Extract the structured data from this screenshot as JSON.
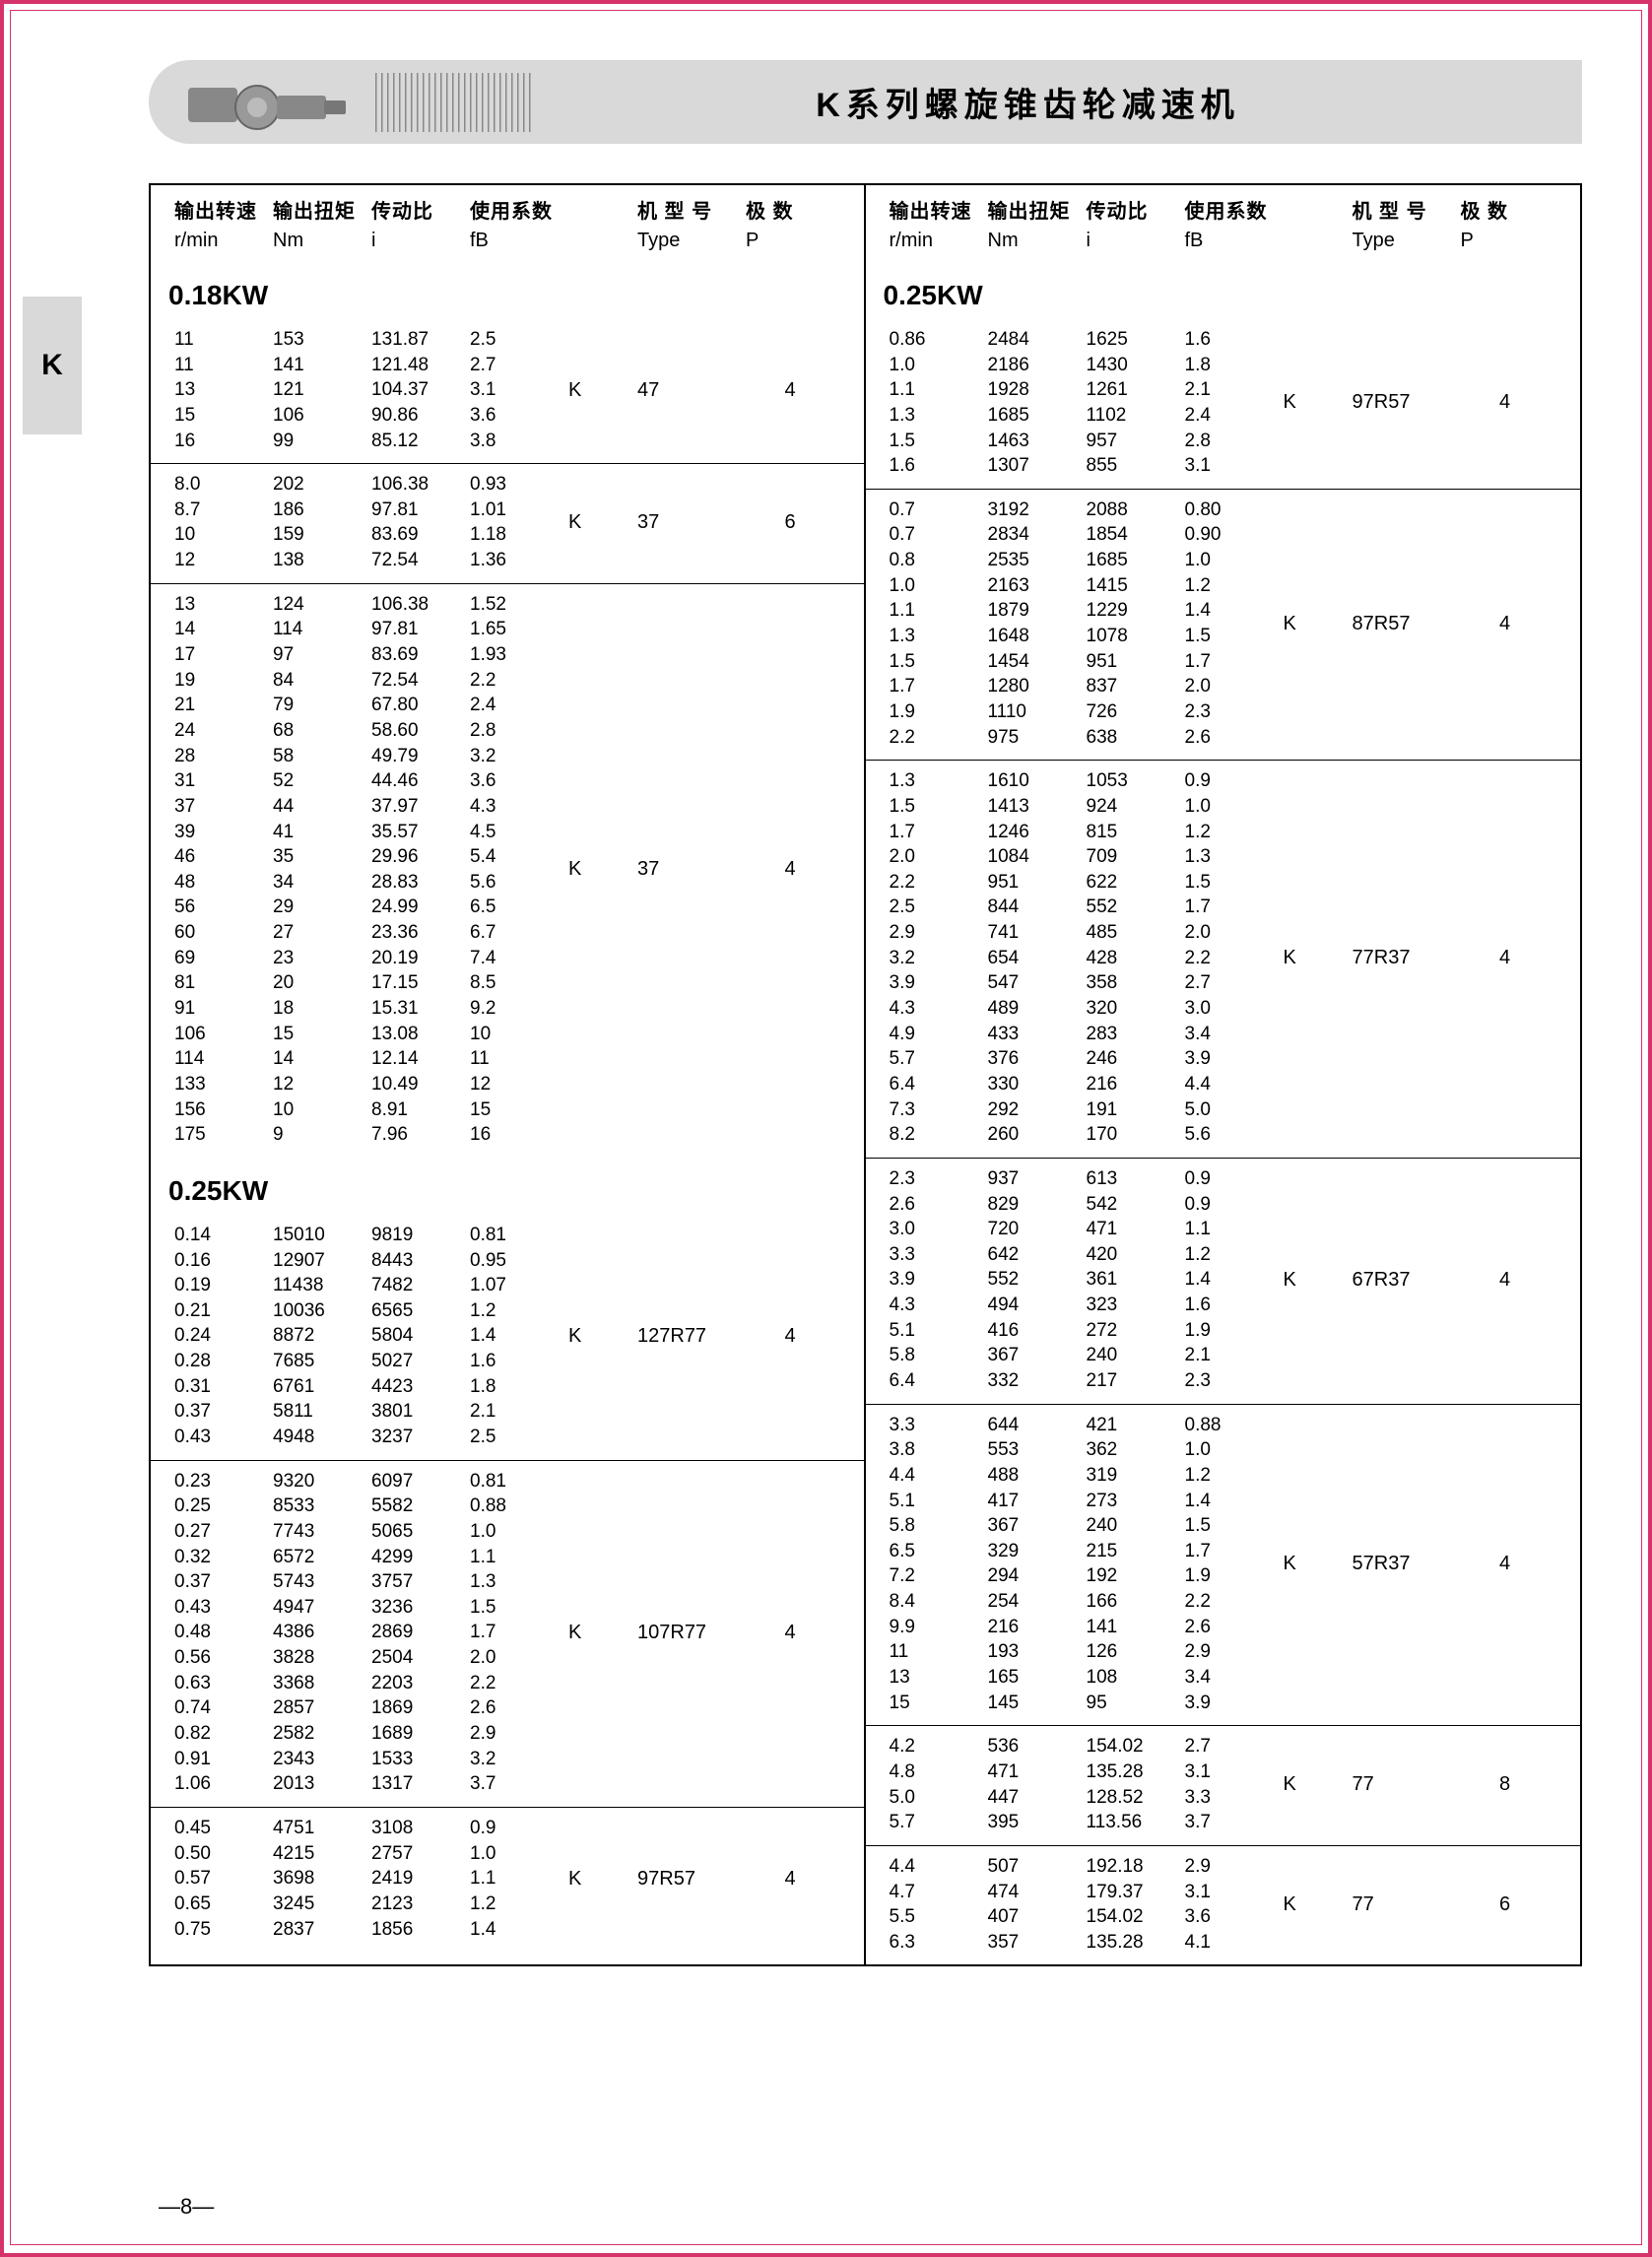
{
  "title": "K系列螺旋锥齿轮减速机",
  "side_tab": "K",
  "page_number": "—8—",
  "headers": {
    "cn": [
      "输出转速",
      "输出扭矩",
      "传动比",
      "使用系数",
      "机 型 号",
      "极 数"
    ],
    "en": [
      "r/min",
      "Nm",
      "i",
      "fB",
      "Type",
      "P"
    ]
  },
  "left_column": {
    "sections": [
      {
        "title": "0.18KW",
        "groups": [
          {
            "type_prefix": "K",
            "type": "47",
            "poles": "4",
            "rows": [
              [
                "11",
                "153",
                "131.87",
                "2.5"
              ],
              [
                "11",
                "141",
                "121.48",
                "2.7"
              ],
              [
                "13",
                "121",
                "104.37",
                "3.1"
              ],
              [
                "15",
                "106",
                "90.86",
                "3.6"
              ],
              [
                "16",
                "99",
                "85.12",
                "3.8"
              ]
            ]
          },
          {
            "type_prefix": "K",
            "type": "37",
            "poles": "6",
            "rows": [
              [
                "8.0",
                "202",
                "106.38",
                "0.93"
              ],
              [
                "8.7",
                "186",
                "97.81",
                "1.01"
              ],
              [
                "10",
                "159",
                "83.69",
                "1.18"
              ],
              [
                "12",
                "138",
                "72.54",
                "1.36"
              ]
            ]
          },
          {
            "type_prefix": "K",
            "type": "37",
            "poles": "4",
            "rows": [
              [
                "13",
                "124",
                "106.38",
                "1.52"
              ],
              [
                "14",
                "114",
                "97.81",
                "1.65"
              ],
              [
                "17",
                "97",
                "83.69",
                "1.93"
              ],
              [
                "19",
                "84",
                "72.54",
                "2.2"
              ],
              [
                "21",
                "79",
                "67.80",
                "2.4"
              ],
              [
                "24",
                "68",
                "58.60",
                "2.8"
              ],
              [
                "28",
                "58",
                "49.79",
                "3.2"
              ],
              [
                "31",
                "52",
                "44.46",
                "3.6"
              ],
              [
                "37",
                "44",
                "37.97",
                "4.3"
              ],
              [
                "39",
                "41",
                "35.57",
                "4.5"
              ],
              [
                "46",
                "35",
                "29.96",
                "5.4"
              ],
              [
                "48",
                "34",
                "28.83",
                "5.6"
              ],
              [
                "56",
                "29",
                "24.99",
                "6.5"
              ],
              [
                "60",
                "27",
                "23.36",
                "6.7"
              ],
              [
                "69",
                "23",
                "20.19",
                "7.4"
              ],
              [
                "81",
                "20",
                "17.15",
                "8.5"
              ],
              [
                "91",
                "18",
                "15.31",
                "9.2"
              ],
              [
                "106",
                "15",
                "13.08",
                "10"
              ],
              [
                "114",
                "14",
                "12.14",
                "11"
              ],
              [
                "133",
                "12",
                "10.49",
                "12"
              ],
              [
                "156",
                "10",
                "8.91",
                "15"
              ],
              [
                "175",
                "9",
                "7.96",
                "16"
              ]
            ]
          }
        ]
      },
      {
        "title": "0.25KW",
        "groups": [
          {
            "type_prefix": "K",
            "type": "127R77",
            "poles": "4",
            "rows": [
              [
                "0.14",
                "15010",
                "9819",
                "0.81"
              ],
              [
                "0.16",
                "12907",
                "8443",
                "0.95"
              ],
              [
                "0.19",
                "11438",
                "7482",
                "1.07"
              ],
              [
                "0.21",
                "10036",
                "6565",
                "1.2"
              ],
              [
                "0.24",
                "8872",
                "5804",
                "1.4"
              ],
              [
                "0.28",
                "7685",
                "5027",
                "1.6"
              ],
              [
                "0.31",
                "6761",
                "4423",
                "1.8"
              ],
              [
                "0.37",
                "5811",
                "3801",
                "2.1"
              ],
              [
                "0.43",
                "4948",
                "3237",
                "2.5"
              ]
            ]
          },
          {
            "type_prefix": "K",
            "type": "107R77",
            "poles": "4",
            "rows": [
              [
                "0.23",
                "9320",
                "6097",
                "0.81"
              ],
              [
                "0.25",
                "8533",
                "5582",
                "0.88"
              ],
              [
                "0.27",
                "7743",
                "5065",
                "1.0"
              ],
              [
                "0.32",
                "6572",
                "4299",
                "1.1"
              ],
              [
                "0.37",
                "5743",
                "3757",
                "1.3"
              ],
              [
                "0.43",
                "4947",
                "3236",
                "1.5"
              ],
              [
                "0.48",
                "4386",
                "2869",
                "1.7"
              ],
              [
                "0.56",
                "3828",
                "2504",
                "2.0"
              ],
              [
                "0.63",
                "3368",
                "2203",
                "2.2"
              ],
              [
                "0.74",
                "2857",
                "1869",
                "2.6"
              ],
              [
                "0.82",
                "2582",
                "1689",
                "2.9"
              ],
              [
                "0.91",
                "2343",
                "1533",
                "3.2"
              ],
              [
                "1.06",
                "2013",
                "1317",
                "3.7"
              ]
            ]
          },
          {
            "type_prefix": "K",
            "type": "97R57",
            "poles": "4",
            "rows": [
              [
                "0.45",
                "4751",
                "3108",
                "0.9"
              ],
              [
                "0.50",
                "4215",
                "2757",
                "1.0"
              ],
              [
                "0.57",
                "3698",
                "2419",
                "1.1"
              ],
              [
                "0.65",
                "3245",
                "2123",
                "1.2"
              ],
              [
                "0.75",
                "2837",
                "1856",
                "1.4"
              ]
            ]
          }
        ]
      }
    ]
  },
  "right_column": {
    "sections": [
      {
        "title": "0.25KW",
        "groups": [
          {
            "type_prefix": "K",
            "type": "97R57",
            "poles": "4",
            "rows": [
              [
                "0.86",
                "2484",
                "1625",
                "1.6"
              ],
              [
                "1.0",
                "2186",
                "1430",
                "1.8"
              ],
              [
                "1.1",
                "1928",
                "1261",
                "2.1"
              ],
              [
                "1.3",
                "1685",
                "1102",
                "2.4"
              ],
              [
                "1.5",
                "1463",
                "957",
                "2.8"
              ],
              [
                "1.6",
                "1307",
                "855",
                "3.1"
              ]
            ]
          },
          {
            "type_prefix": "K",
            "type": "87R57",
            "poles": "4",
            "rows": [
              [
                "0.7",
                "3192",
                "2088",
                "0.80"
              ],
              [
                "0.7",
                "2834",
                "1854",
                "0.90"
              ],
              [
                "0.8",
                "2535",
                "1685",
                "1.0"
              ],
              [
                "1.0",
                "2163",
                "1415",
                "1.2"
              ],
              [
                "1.1",
                "1879",
                "1229",
                "1.4"
              ],
              [
                "1.3",
                "1648",
                "1078",
                "1.5"
              ],
              [
                "1.5",
                "1454",
                "951",
                "1.7"
              ],
              [
                "1.7",
                "1280",
                "837",
                "2.0"
              ],
              [
                "1.9",
                "1110",
                "726",
                "2.3"
              ],
              [
                "2.2",
                "975",
                "638",
                "2.6"
              ]
            ]
          },
          {
            "type_prefix": "K",
            "type": "77R37",
            "poles": "4",
            "rows": [
              [
                "1.3",
                "1610",
                "1053",
                "0.9"
              ],
              [
                "1.5",
                "1413",
                "924",
                "1.0"
              ],
              [
                "1.7",
                "1246",
                "815",
                "1.2"
              ],
              [
                "2.0",
                "1084",
                "709",
                "1.3"
              ],
              [
                "2.2",
                "951",
                "622",
                "1.5"
              ],
              [
                "2.5",
                "844",
                "552",
                "1.7"
              ],
              [
                "2.9",
                "741",
                "485",
                "2.0"
              ],
              [
                "3.2",
                "654",
                "428",
                "2.2"
              ],
              [
                "3.9",
                "547",
                "358",
                "2.7"
              ],
              [
                "4.3",
                "489",
                "320",
                "3.0"
              ],
              [
                "4.9",
                "433",
                "283",
                "3.4"
              ],
              [
                "5.7",
                "376",
                "246",
                "3.9"
              ],
              [
                "6.4",
                "330",
                "216",
                "4.4"
              ],
              [
                "7.3",
                "292",
                "191",
                "5.0"
              ],
              [
                "8.2",
                "260",
                "170",
                "5.6"
              ]
            ]
          },
          {
            "type_prefix": "K",
            "type": "67R37",
            "poles": "4",
            "rows": [
              [
                "2.3",
                "937",
                "613",
                "0.9"
              ],
              [
                "2.6",
                "829",
                "542",
                "0.9"
              ],
              [
                "3.0",
                "720",
                "471",
                "1.1"
              ],
              [
                "3.3",
                "642",
                "420",
                "1.2"
              ],
              [
                "3.9",
                "552",
                "361",
                "1.4"
              ],
              [
                "4.3",
                "494",
                "323",
                "1.6"
              ],
              [
                "5.1",
                "416",
                "272",
                "1.9"
              ],
              [
                "5.8",
                "367",
                "240",
                "2.1"
              ],
              [
                "6.4",
                "332",
                "217",
                "2.3"
              ]
            ]
          },
          {
            "type_prefix": "K",
            "type": "57R37",
            "poles": "4",
            "rows": [
              [
                "3.3",
                "644",
                "421",
                "0.88"
              ],
              [
                "3.8",
                "553",
                "362",
                "1.0"
              ],
              [
                "4.4",
                "488",
                "319",
                "1.2"
              ],
              [
                "5.1",
                "417",
                "273",
                "1.4"
              ],
              [
                "5.8",
                "367",
                "240",
                "1.5"
              ],
              [
                "6.5",
                "329",
                "215",
                "1.7"
              ],
              [
                "7.2",
                "294",
                "192",
                "1.9"
              ],
              [
                "8.4",
                "254",
                "166",
                "2.2"
              ],
              [
                "9.9",
                "216",
                "141",
                "2.6"
              ],
              [
                "11",
                "193",
                "126",
                "2.9"
              ],
              [
                "13",
                "165",
                "108",
                "3.4"
              ],
              [
                "15",
                "145",
                "95",
                "3.9"
              ]
            ]
          },
          {
            "type_prefix": "K",
            "type": "77",
            "poles": "8",
            "rows": [
              [
                "4.2",
                "536",
                "154.02",
                "2.7"
              ],
              [
                "4.8",
                "471",
                "135.28",
                "3.1"
              ],
              [
                "5.0",
                "447",
                "128.52",
                "3.3"
              ],
              [
                "5.7",
                "395",
                "113.56",
                "3.7"
              ]
            ]
          },
          {
            "type_prefix": "K",
            "type": "77",
            "poles": "6",
            "rows": [
              [
                "4.4",
                "507",
                "192.18",
                "2.9"
              ],
              [
                "4.7",
                "474",
                "179.37",
                "3.1"
              ],
              [
                "5.5",
                "407",
                "154.02",
                "3.6"
              ],
              [
                "6.3",
                "357",
                "135.28",
                "4.1"
              ]
            ]
          }
        ]
      }
    ]
  }
}
